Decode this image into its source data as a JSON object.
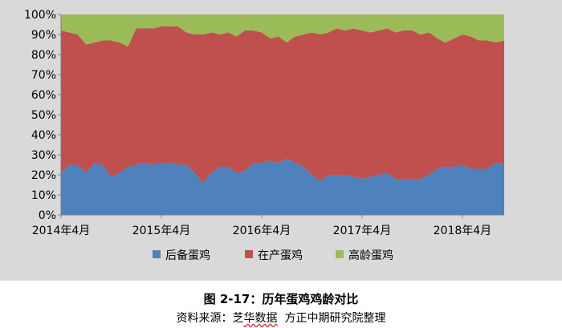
{
  "chart_data": {
    "type": "area",
    "stacked": "percent",
    "title": "",
    "xlabel": "",
    "ylabel": "",
    "ylim": [
      0,
      100
    ],
    "y_ticks": [
      "0%",
      "10%",
      "20%",
      "30%",
      "40%",
      "50%",
      "60%",
      "70%",
      "80%",
      "90%",
      "100%"
    ],
    "x": [
      "2014-04",
      "2014-05",
      "2014-06",
      "2014-07",
      "2014-08",
      "2014-09",
      "2014-10",
      "2014-11",
      "2014-12",
      "2015-01",
      "2015-02",
      "2015-03",
      "2015-04",
      "2015-05",
      "2015-06",
      "2015-07",
      "2015-08",
      "2015-09",
      "2015-10",
      "2015-11",
      "2015-12",
      "2016-01",
      "2016-02",
      "2016-03",
      "2016-04",
      "2016-05",
      "2016-06",
      "2016-07",
      "2016-08",
      "2016-09",
      "2016-10",
      "2016-11",
      "2016-12",
      "2017-01",
      "2017-02",
      "2017-03",
      "2017-04",
      "2017-05",
      "2017-06",
      "2017-07",
      "2017-08",
      "2017-09",
      "2017-10",
      "2017-11",
      "2017-12",
      "2018-01",
      "2018-02",
      "2018-03",
      "2018-04",
      "2018-05",
      "2018-06",
      "2018-07",
      "2018-08",
      "2018-09"
    ],
    "x_tick_labels": [
      "2014年4月",
      "2015年4月",
      "2016年4月",
      "2017年4月",
      "2018年4月"
    ],
    "x_tick_values": [
      "2014-04",
      "2015-04",
      "2016-04",
      "2017-04",
      "2018-04"
    ],
    "series": [
      {
        "name": "后备蛋鸡",
        "color": "#4f81bd",
        "values": [
          21,
          25,
          25,
          21,
          26,
          25,
          19,
          21,
          24,
          25,
          26,
          25,
          26,
          26,
          25,
          25,
          21,
          16,
          21,
          24,
          24,
          21,
          22,
          26,
          26,
          27,
          26,
          28,
          26,
          24,
          20,
          17,
          20,
          20,
          20,
          19,
          18,
          19,
          20,
          21,
          18,
          18,
          18,
          18,
          20,
          23,
          24,
          24,
          25,
          23,
          23,
          23,
          26,
          25
        ]
      },
      {
        "name": "在产蛋鸡",
        "color": "#c0504d",
        "values": [
          71,
          66,
          65,
          64,
          60,
          62,
          68,
          65,
          60,
          68,
          67,
          68,
          68,
          68,
          69,
          66,
          69,
          74,
          70,
          66,
          67,
          68,
          70,
          66,
          65,
          61,
          63,
          58,
          63,
          66,
          71,
          73,
          71,
          73,
          72,
          74,
          74,
          72,
          72,
          72,
          73,
          74,
          74,
          72,
          71,
          65,
          62,
          64,
          65,
          66,
          64,
          64,
          60,
          62
        ]
      },
      {
        "name": "高龄蛋鸡",
        "color": "#9bbb59",
        "values": [
          8,
          9,
          10,
          15,
          14,
          13,
          13,
          14,
          16,
          7,
          7,
          7,
          6,
          6,
          6,
          9,
          10,
          10,
          9,
          10,
          9,
          11,
          8,
          8,
          9,
          12,
          11,
          14,
          11,
          10,
          9,
          10,
          9,
          7,
          8,
          7,
          8,
          9,
          8,
          7,
          9,
          8,
          8,
          10,
          9,
          12,
          14,
          12,
          10,
          11,
          13,
          13,
          14,
          13
        ]
      }
    ],
    "legend": "bottom",
    "grid": false
  },
  "caption": {
    "title": "图 2-17：历年蛋鸡鸡龄对比",
    "source_prefix": "资料来源：芝",
    "source_underlined": "华数据",
    "source_suffix": "  方正中期研究院整理"
  }
}
